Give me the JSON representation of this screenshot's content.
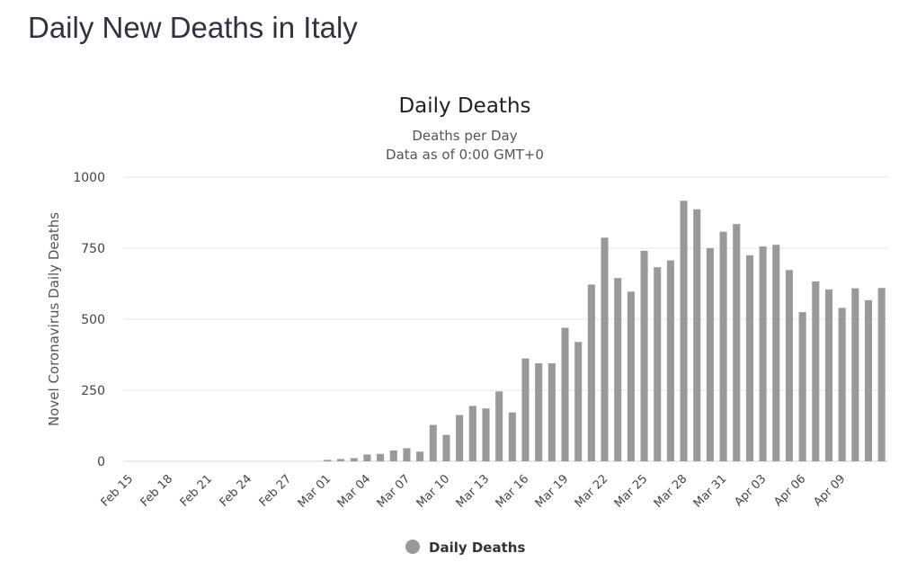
{
  "page": {
    "title": "Daily New Deaths in Italy"
  },
  "chart_data": {
    "type": "bar",
    "title": "Daily Deaths",
    "subtitle": [
      "Deaths per Day",
      "Data as of 0:00 GMT+0"
    ],
    "ylabel": "Novel Coronavirus Daily Deaths",
    "xlabel": "",
    "ylim": [
      0,
      1000
    ],
    "yticks": [
      0,
      250,
      500,
      750,
      1000
    ],
    "grid": true,
    "legend_position": "bottom-center",
    "bar_color": "#999999",
    "categories": [
      "Feb 15",
      "Feb 16",
      "Feb 17",
      "Feb 18",
      "Feb 19",
      "Feb 20",
      "Feb 21",
      "Feb 22",
      "Feb 23",
      "Feb 24",
      "Feb 25",
      "Feb 26",
      "Feb 27",
      "Feb 28",
      "Feb 29",
      "Mar 01",
      "Mar 02",
      "Mar 03",
      "Mar 04",
      "Mar 05",
      "Mar 06",
      "Mar 07",
      "Mar 08",
      "Mar 09",
      "Mar 10",
      "Mar 11",
      "Mar 12",
      "Mar 13",
      "Mar 14",
      "Mar 15",
      "Mar 16",
      "Mar 17",
      "Mar 18",
      "Mar 19",
      "Mar 20",
      "Mar 21",
      "Mar 22",
      "Mar 23",
      "Mar 24",
      "Mar 25",
      "Mar 26",
      "Mar 27",
      "Mar 28",
      "Mar 29",
      "Mar 30",
      "Mar 31",
      "Apr 01",
      "Apr 02",
      "Apr 03",
      "Apr 04",
      "Apr 05",
      "Apr 06",
      "Apr 07",
      "Apr 08",
      "Apr 09",
      "Apr 10",
      "Apr 11",
      "Apr 12"
    ],
    "tick_labels": [
      "Feb 15",
      "Feb 18",
      "Feb 21",
      "Feb 24",
      "Feb 27",
      "Mar 01",
      "Mar 04",
      "Mar 07",
      "Mar 10",
      "Mar 13",
      "Mar 16",
      "Mar 19",
      "Mar 22",
      "Mar 25",
      "Mar 28",
      "Mar 31",
      "Apr 03",
      "Apr 06",
      "Apr 09"
    ],
    "series": [
      {
        "name": "Daily Deaths",
        "values": [
          0,
          0,
          0,
          0,
          0,
          0,
          0,
          0,
          0,
          0,
          0,
          0,
          0,
          0,
          0,
          5,
          8,
          11,
          24,
          26,
          38,
          46,
          34,
          128,
          93,
          163,
          195,
          186,
          246,
          172,
          362,
          345,
          345,
          470,
          420,
          622,
          787,
          645,
          597,
          741,
          683,
          707,
          917,
          887,
          750,
          808,
          835,
          725,
          756,
          762,
          673,
          525,
          633,
          605,
          540,
          609,
          567,
          610
        ]
      }
    ]
  }
}
